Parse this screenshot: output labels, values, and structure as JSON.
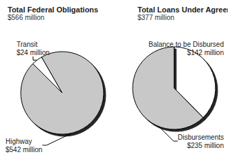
{
  "chart_data": [
    {
      "type": "pie",
      "title": "Total Federal Obligations",
      "subtitle": "$566 million",
      "categories": [
        "Transit",
        "Highway"
      ],
      "values": [
        24,
        542
      ],
      "value_labels": [
        "$24 million",
        "$542 million"
      ],
      "colors": [
        "#ffffff",
        "#c8c8c8"
      ],
      "data_labels": true
    },
    {
      "type": "pie",
      "title": "Total Loans Under Agreement",
      "subtitle": "$377 million",
      "categories": [
        "Balance to be Disbursed",
        "Disbursements"
      ],
      "values": [
        142,
        235
      ],
      "value_labels": [
        "$142 million",
        "$235 million"
      ],
      "colors": [
        "#ffffff",
        "#c8c8c8"
      ],
      "data_labels": true
    }
  ]
}
